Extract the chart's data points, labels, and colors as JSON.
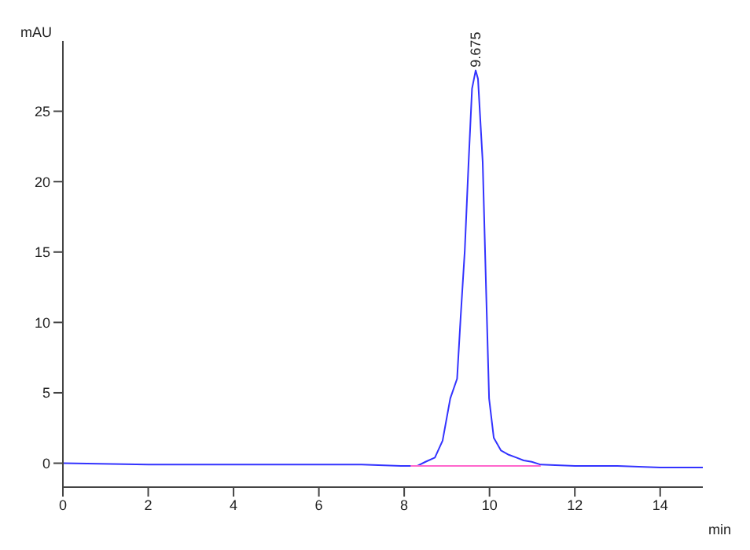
{
  "chart_data": {
    "type": "line",
    "xlabel": "min",
    "ylabel": "mAU",
    "xlim": [
      0,
      15
    ],
    "xticks": [
      0,
      2,
      4,
      6,
      8,
      10,
      12,
      14
    ],
    "ylim": [
      -1.7,
      30
    ],
    "yticks": [
      0,
      5,
      10,
      15,
      20,
      25
    ],
    "marker": "none",
    "line_style": "solid",
    "annotations": [
      {
        "text": "9.675",
        "x": 9.675,
        "y": 27.9
      }
    ],
    "series": [
      {
        "color": "#3333ff",
        "x": [
          0,
          2,
          4,
          6,
          7,
          8,
          8.3,
          8.5,
          8.72,
          8.9,
          9.08,
          9.24,
          9.32,
          9.42,
          9.51,
          9.59,
          9.675,
          9.73,
          9.84,
          9.92,
          9.99,
          10.1,
          10.27,
          10.45,
          10.63,
          10.8,
          10.99,
          11.2,
          12,
          13,
          14,
          15
        ],
        "values": [
          0,
          -0.1,
          -0.1,
          -0.1,
          -0.1,
          -0.2,
          -0.2,
          0.1,
          0.4,
          1.6,
          4.6,
          6.0,
          10.2,
          15.1,
          21.4,
          26.6,
          27.9,
          27.3,
          21.4,
          12.3,
          4.6,
          1.8,
          0.9,
          0.6,
          0.4,
          0.2,
          0.1,
          -0.1,
          -0.2,
          -0.2,
          -0.3,
          -0.3
        ]
      },
      {
        "color": "#ff66cc",
        "x": [
          8.15,
          11.2
        ],
        "values": [
          -0.2,
          -0.2
        ]
      }
    ]
  }
}
